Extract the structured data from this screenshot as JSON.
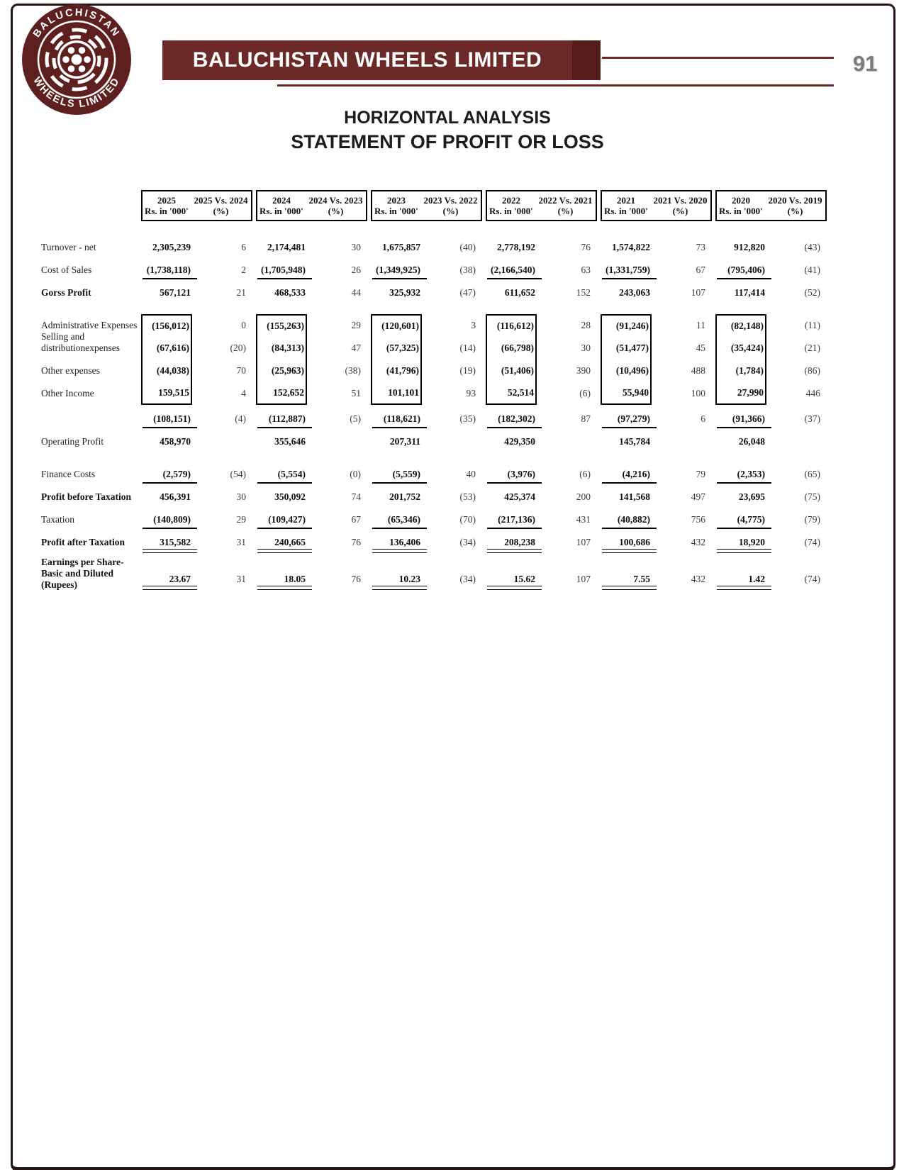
{
  "page": {
    "number": "91"
  },
  "logo": {
    "top_text": "BALUCHISTAN",
    "bottom_text": "WHEELS LIMITED"
  },
  "banner": {
    "company": "BALUCHISTAN WHEELS LIMITED"
  },
  "titles": {
    "line1": "HORIZONTAL ANALYSIS",
    "line2": "STATEMENT OF PROFIT OR LOSS"
  },
  "colors": {
    "maroon": "#6b2a28",
    "banner_cap": "#541d1c",
    "page_number_gray": "#7d7d7d",
    "frame": "#241413"
  },
  "table": {
    "groups": [
      {
        "year": "2025",
        "vs": "2025 Vs. 2024",
        "unit": "Rs. in '000'",
        "pct": "(%)"
      },
      {
        "year": "2024",
        "vs": "2024 Vs. 2023",
        "unit": "Rs. in '000'",
        "pct": "(%)"
      },
      {
        "year": "2023",
        "vs": "2023 Vs. 2022",
        "unit": "Rs. in '000'",
        "pct": "(%)"
      },
      {
        "year": "2022",
        "vs": "2022 Vs. 2021",
        "unit": "Rs. in '000'",
        "pct": "(%)"
      },
      {
        "year": "2021",
        "vs": "2021 Vs. 2020",
        "unit": "Rs. in '000'",
        "pct": "(%)"
      },
      {
        "year": "2020",
        "vs": "2020 Vs. 2019",
        "unit": "Rs. in '000'",
        "pct": "(%)"
      }
    ],
    "rows": [
      {
        "label": "Turnover - net",
        "bold": false,
        "underline": "none",
        "box": null,
        "values": [
          "2,305,239",
          "2,174,481",
          "1,675,857",
          "2,778,192",
          "1,574,822",
          "912,820"
        ],
        "pcts": [
          "6",
          "30",
          "(40)",
          "76",
          "73",
          "(43)"
        ]
      },
      {
        "label": "Cost of Sales",
        "bold": false,
        "underline": "single",
        "box": null,
        "values": [
          "(1,738,118)",
          "(1,705,948)",
          "(1,349,925)",
          "(2,166,540)",
          "(1,331,759)",
          "(795,406)"
        ],
        "pcts": [
          "2",
          "26",
          "(38)",
          "63",
          "67",
          "(41)"
        ]
      },
      {
        "label": "Gorss Profit",
        "bold": true,
        "underline": "none",
        "box": null,
        "values": [
          "567,121",
          "468,533",
          "325,932",
          "611,652",
          "243,063",
          "117,414"
        ],
        "pcts": [
          "21",
          "44",
          "(47)",
          "152",
          "107",
          "(52)"
        ]
      },
      {
        "label": "Administrative Expenses",
        "bold": false,
        "underline": "none",
        "box": "top",
        "values": [
          "(156,012)",
          "(155,263)",
          "(120,601)",
          "(116,612)",
          "(91,246)",
          "(82,148)"
        ],
        "pcts": [
          "0",
          "29",
          "3",
          "28",
          "11",
          "(11)"
        ]
      },
      {
        "label": "Selling and distribution expenses",
        "bold": false,
        "underline": "none",
        "box": "mid",
        "label_lines": [
          "Selling and distribution",
          "expenses"
        ],
        "values": [
          "(67,616)",
          "(84,313)",
          "(57,325)",
          "(66,798)",
          "(51,477)",
          "(35,424)"
        ],
        "pcts": [
          "(20)",
          "47",
          "(14)",
          "30",
          "45",
          "(21)"
        ]
      },
      {
        "label": "Other expenses",
        "bold": false,
        "underline": "none",
        "box": "mid",
        "values": [
          "(44,038)",
          "(25,963)",
          "(41,796)",
          "(51,406)",
          "(10,496)",
          "(1,784)"
        ],
        "pcts": [
          "70",
          "(38)",
          "(19)",
          "390",
          "488",
          "(86)"
        ]
      },
      {
        "label": "Other Income",
        "bold": false,
        "underline": "none",
        "box": "bottom",
        "values": [
          "159,515",
          "152,652",
          "101,101",
          "52,514",
          "55,940",
          "27,990"
        ],
        "pcts": [
          "4",
          "51",
          "93",
          "(6)",
          "100",
          "446"
        ]
      },
      {
        "label": "",
        "bold": false,
        "underline": "single",
        "box": null,
        "values": [
          "(108,151)",
          "(112,887)",
          "(118,621)",
          "(182,302)",
          "(97,279)",
          "(91,366)"
        ],
        "pcts": [
          "(4)",
          "(5)",
          "(35)",
          "87",
          "6",
          "(37)"
        ]
      },
      {
        "label": "Operating Profit",
        "bold": false,
        "underline": "none",
        "box": null,
        "values": [
          "458,970",
          "355,646",
          "207,311",
          "429,350",
          "145,784",
          "26,048"
        ],
        "pcts": [
          "",
          "",
          "",
          "",
          "",
          ""
        ]
      },
      {
        "label": "Finance Costs",
        "bold": false,
        "underline": "single",
        "box": null,
        "values": [
          "(2,579)",
          "(5,554)",
          "(5,559)",
          "(3,976)",
          "(4,216)",
          "(2,353)"
        ],
        "pcts": [
          "(54)",
          "(0)",
          "40",
          "(6)",
          "79",
          "(65)"
        ]
      },
      {
        "label": "Profit before Taxation",
        "bold": true,
        "underline": "none",
        "box": null,
        "values": [
          "456,391",
          "350,092",
          "201,752",
          "425,374",
          "141,568",
          "23,695"
        ],
        "pcts": [
          "30",
          "74",
          "(53)",
          "200",
          "497",
          "(75)"
        ]
      },
      {
        "label": "Taxation",
        "bold": false,
        "underline": "single",
        "box": null,
        "values": [
          "(140,809)",
          "(109,427)",
          "(65,346)",
          "(217,136)",
          "(40,882)",
          "(4,775)"
        ],
        "pcts": [
          "29",
          "67",
          "(70)",
          "431",
          "756",
          "(79)"
        ]
      },
      {
        "label": "Profit after Taxation",
        "bold": true,
        "underline": "double",
        "box": null,
        "values": [
          "315,582",
          "240,665",
          "136,406",
          "208,238",
          "100,686",
          "18,920"
        ],
        "pcts": [
          "31",
          "76",
          "(34)",
          "107",
          "432",
          "(74)"
        ]
      },
      {
        "label": "Earnings per Share- Basic and Diluted (Rupees)",
        "bold": true,
        "underline": "double",
        "box": null,
        "kind": "eps",
        "label_lines": [
          "Earnings per Share-",
          "Basic and Diluted",
          "(Rupees)"
        ],
        "values": [
          "23.67",
          "18.05",
          "10.23",
          "15.62",
          "7.55",
          "1.42"
        ],
        "pcts": [
          "31",
          "76",
          "(34)",
          "107",
          "432",
          "(74)"
        ]
      }
    ]
  }
}
